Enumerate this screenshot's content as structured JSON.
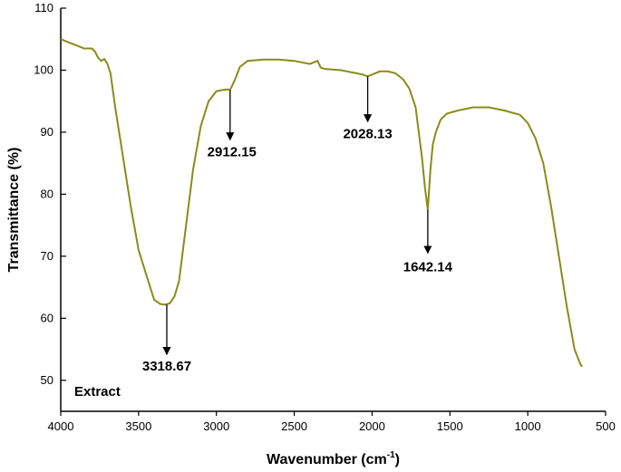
{
  "chart_data": {
    "type": "line",
    "title": "",
    "xlabel": "Wavenumber (cm",
    "xlabel_sup": "-1",
    "xlabel_close": ")",
    "ylabel": "Transmittance (%)",
    "xlim": [
      4000,
      500
    ],
    "ylim": [
      45,
      110
    ],
    "x_ticks": [
      4000,
      3500,
      3000,
      2500,
      2000,
      1500,
      1000,
      500
    ],
    "y_ticks": [
      50,
      60,
      70,
      80,
      90,
      100,
      110
    ],
    "grid": false,
    "line_color": "#8b8b1a",
    "sample_label": "Extract",
    "series": [
      {
        "x": [
          4000,
          3950,
          3900,
          3850,
          3800,
          3780,
          3760,
          3740,
          3720,
          3700,
          3680,
          3650,
          3600,
          3550,
          3500,
          3450,
          3400,
          3360,
          3330,
          3300,
          3270,
          3240,
          3200,
          3150,
          3100,
          3050,
          3000,
          2960,
          2930,
          2912,
          2880,
          2850,
          2800,
          2750,
          2700,
          2600,
          2500,
          2400,
          2350,
          2330,
          2300,
          2200,
          2100,
          2060,
          2028,
          2000,
          1950,
          1900,
          1850,
          1800,
          1760,
          1720,
          1700,
          1680,
          1660,
          1642,
          1625,
          1610,
          1590,
          1560,
          1520,
          1450,
          1350,
          1250,
          1150,
          1050,
          1000,
          950,
          900,
          850,
          800,
          750,
          700,
          660,
          650
        ],
        "y": [
          105,
          104.5,
          104,
          103.5,
          103.5,
          103,
          102,
          101.5,
          101.8,
          101,
          99.5,
          94,
          86,
          78,
          71,
          67,
          63,
          62.3,
          62.2,
          62.4,
          63.5,
          66,
          74,
          84,
          91,
          95,
          96.6,
          96.8,
          96.9,
          96.8,
          98.5,
          100.5,
          101.5,
          101.6,
          101.7,
          101.7,
          101.5,
          101,
          101.5,
          100.4,
          100.2,
          100,
          99.5,
          99.3,
          99,
          99.3,
          99.8,
          99.8,
          99.5,
          98.5,
          97,
          94,
          90,
          86,
          81,
          77.5,
          84,
          88,
          90,
          92,
          93,
          93.5,
          94,
          94,
          93.5,
          92.8,
          91.5,
          89,
          85,
          78,
          70,
          62,
          55,
          52.5,
          52.2
        ]
      }
    ],
    "annotations": [
      {
        "label": "3318.67",
        "x": 3318.67,
        "y": 62.2
      },
      {
        "label": "2912.15",
        "x": 2912.15,
        "y": 96.8
      },
      {
        "label": "2028.13",
        "x": 2028.13,
        "y": 99.0
      },
      {
        "label": "1642.14",
        "x": 1642.14,
        "y": 77.5
      }
    ]
  }
}
